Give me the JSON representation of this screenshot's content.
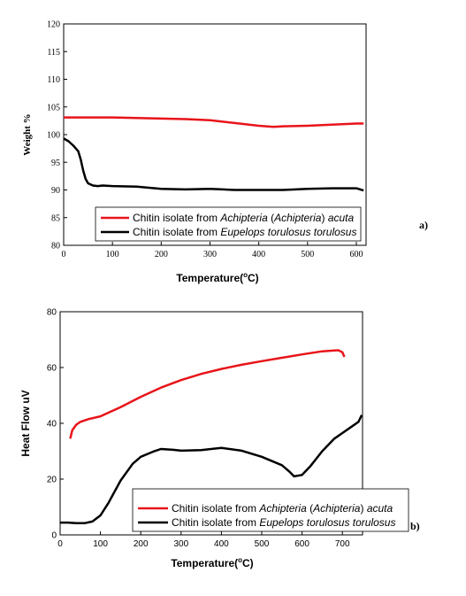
{
  "chart_data": [
    {
      "type": "line",
      "panel_label": "a)",
      "xlabel_main": "Temperature(",
      "xlabel_sup": "o",
      "xlabel_end": "C)",
      "ylabel": "Weight %",
      "xlim": [
        0,
        620
      ],
      "ylim": [
        80,
        120
      ],
      "xticks": [
        0,
        100,
        200,
        300,
        400,
        500,
        600
      ],
      "yticks": [
        80,
        85,
        90,
        95,
        100,
        105,
        110,
        115,
        120
      ],
      "legend_position": "bottom-center",
      "series": [
        {
          "name_prefix": "Chitin isolate from ",
          "name_italic_1": "Achipteria",
          "name_mid": " (",
          "name_italic_2": "Achipteria",
          "name_mid2": ") ",
          "name_italic_3": "acuta",
          "color": "#e8141a",
          "x": [
            0,
            50,
            100,
            150,
            200,
            250,
            300,
            350,
            400,
            430,
            450,
            500,
            550,
            600,
            615
          ],
          "y": [
            103.1,
            103.1,
            103.1,
            103.0,
            102.9,
            102.8,
            102.6,
            102.1,
            101.6,
            101.4,
            101.5,
            101.6,
            101.8,
            102.0,
            102.0
          ]
        },
        {
          "name_prefix": "Chitin isolate from ",
          "name_italic_1": "Eupelops torulosus torulosus",
          "name_mid": "",
          "name_italic_2": "",
          "name_mid2": "",
          "name_italic_3": "",
          "color": "#000000",
          "x": [
            0,
            10,
            20,
            30,
            35,
            40,
            45,
            50,
            60,
            70,
            80,
            100,
            150,
            200,
            250,
            300,
            350,
            400,
            450,
            500,
            550,
            600,
            615
          ],
          "y": [
            99.3,
            98.8,
            98.0,
            97.0,
            95.5,
            93.5,
            92.0,
            91.2,
            90.8,
            90.7,
            90.8,
            90.7,
            90.6,
            90.2,
            90.1,
            90.2,
            90.0,
            90.0,
            90.0,
            90.2,
            90.3,
            90.3,
            89.9
          ]
        }
      ]
    },
    {
      "type": "line",
      "panel_label": "b)",
      "xlabel_main": "Temperature(",
      "xlabel_sup": "o",
      "xlabel_end": "C)",
      "ylabel": "Heat Flow uV",
      "xlim": [
        0,
        750
      ],
      "ylim": [
        0,
        80
      ],
      "xticks": [
        0,
        100,
        200,
        300,
        400,
        500,
        600,
        700
      ],
      "yticks": [
        0,
        20,
        40,
        60,
        80
      ],
      "legend_position": "bottom-right",
      "series": [
        {
          "name_prefix": "Chitin isolate from ",
          "name_italic_1": "Achipteria",
          "name_mid": " (",
          "name_italic_2": "Achipteria",
          "name_mid2": ") ",
          "name_italic_3": "acuta",
          "color": "#e8141a",
          "x": [
            25,
            30,
            40,
            50,
            70,
            100,
            150,
            200,
            250,
            300,
            350,
            400,
            450,
            500,
            550,
            600,
            650,
            690,
            700,
            705
          ],
          "y": [
            34.5,
            37.5,
            39.5,
            40.5,
            41.5,
            42.5,
            45.8,
            49.5,
            52.8,
            55.5,
            57.7,
            59.5,
            61.0,
            62.3,
            63.5,
            64.7,
            65.8,
            66.2,
            65.5,
            63.8
          ]
        },
        {
          "name_prefix": "Chitin isolate from ",
          "name_italic_1": "Eupelops torulosus torulosus",
          "name_mid": "",
          "name_italic_2": "",
          "name_mid2": "",
          "name_italic_3": "",
          "color": "#000000",
          "x": [
            0,
            20,
            40,
            60,
            80,
            100,
            120,
            150,
            180,
            200,
            230,
            250,
            280,
            300,
            350,
            400,
            450,
            500,
            550,
            570,
            580,
            600,
            620,
            650,
            680,
            700,
            720,
            740,
            748
          ],
          "y": [
            4.4,
            4.4,
            4.2,
            4.2,
            4.8,
            7.0,
            11.5,
            19.5,
            25.5,
            28.0,
            29.8,
            30.8,
            30.5,
            30.2,
            30.4,
            31.2,
            30.2,
            28.0,
            25.0,
            22.5,
            21.0,
            21.5,
            24.5,
            30.0,
            34.5,
            36.5,
            38.5,
            40.5,
            43.0
          ]
        }
      ]
    }
  ]
}
